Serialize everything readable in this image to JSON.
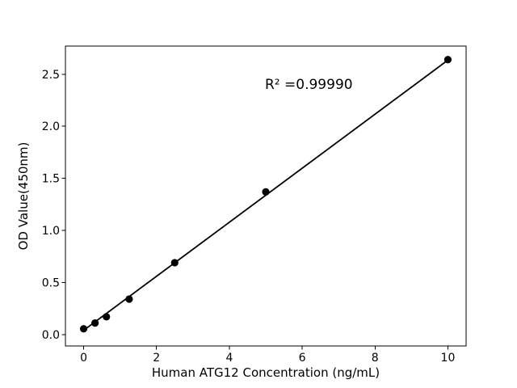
{
  "figure": {
    "background": "#ffffff",
    "foreground": "#000000"
  },
  "chart_data": {
    "type": "scatter",
    "title": "",
    "xlabel": "Human ATG12 Concentration (ng/mL)",
    "ylabel": "OD Value(450nm)",
    "annotation": "R² =0.99990",
    "x": [
      0,
      0.3125,
      0.625,
      1.25,
      2.5,
      5,
      10
    ],
    "y": [
      0.055,
      0.11,
      0.17,
      0.34,
      0.69,
      1.37,
      2.64
    ],
    "fit_line": {
      "slope": 0.2595,
      "intercept": 0.04,
      "x_start": 0,
      "x_end": 10
    },
    "xlim": [
      -0.5,
      10.5
    ],
    "ylim": [
      -0.11,
      2.77
    ],
    "xticks": [
      0,
      2,
      4,
      6,
      8,
      10
    ],
    "xtick_labels": [
      "0",
      "2",
      "4",
      "6",
      "8",
      "10"
    ],
    "yticks": [
      0,
      0.5,
      1,
      1.5,
      2,
      2.5
    ],
    "ytick_labels": [
      "0.0",
      "0.5",
      "1.0",
      "1.5",
      "2.0",
      "2.5"
    ],
    "grid": false,
    "legend_position": "none",
    "marker_color": "#000000",
    "line_color": "#000000"
  }
}
